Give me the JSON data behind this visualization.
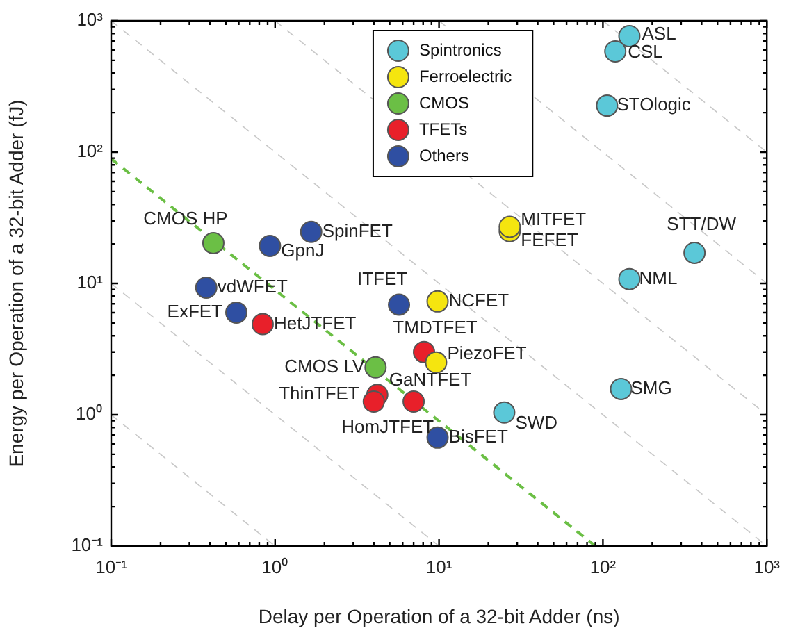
{
  "chart_data": {
    "type": "scatter",
    "xlabel": "Delay per Operation of a 32-bit Adder (ns)",
    "ylabel": "Energy per Operation of a 32-bit Adder (fJ)",
    "log": "xy",
    "grid": false,
    "legend": "top",
    "marker": "circle",
    "xlim": [
      0.1,
      1000
    ],
    "ylim": [
      0.1,
      1000
    ],
    "xticks": [
      {
        "value": 0.1,
        "label": "10⁻¹"
      },
      {
        "value": 1,
        "label": "10⁰"
      },
      {
        "value": 10,
        "label": "10¹"
      },
      {
        "value": 100,
        "label": "10²"
      },
      {
        "value": 1000,
        "label": "10³"
      }
    ],
    "yticks": [
      {
        "value": 0.1,
        "label": "10⁻¹"
      },
      {
        "value": 1,
        "label": "10⁰"
      },
      {
        "value": 10,
        "label": "10¹"
      },
      {
        "value": 100,
        "label": "10²"
      },
      {
        "value": 1000,
        "label": "10³"
      }
    ],
    "series": [
      {
        "name": "Spintronics",
        "color": "#5bc8d8",
        "x": [
          145,
          119,
          106,
          362,
          145,
          129,
          25
        ],
        "values": [
          765,
          585,
          226,
          17.1,
          10.8,
          1.57,
          1.04
        ]
      },
      {
        "name": "Ferroelectric",
        "color": "#f5e50f",
        "x": [
          27,
          27,
          9.8,
          9.6
        ],
        "values": [
          25,
          27,
          7.3,
          2.5
        ]
      },
      {
        "name": "CMOS",
        "color": "#6bbf45",
        "x": [
          0.42,
          4.1
        ],
        "values": [
          20.3,
          2.3
        ]
      },
      {
        "name": "TFETs",
        "color": "#e8202a",
        "x": [
          0.84,
          4.2,
          4,
          7,
          8.1
        ],
        "values": [
          4.9,
          1.42,
          1.26,
          1.26,
          3
        ]
      },
      {
        "name": "Others",
        "color": "#2f4fa2",
        "x": [
          0.38,
          0.58,
          0.93,
          1.66,
          5.7,
          9.8
        ],
        "values": [
          9.3,
          6,
          19.3,
          24.7,
          6.9,
          0.67
        ]
      },
      {
        "type": "line",
        "color": "#6bbf45",
        "line_style": "dashed",
        "marker": "none",
        "x": [
          0.1,
          90
        ],
        "values": [
          89,
          0.1
        ]
      },
      {
        "type": "line",
        "color": "#c8c8c8",
        "line_style": "dashed",
        "marker": "none",
        "x": [
          0.1,
          1
        ],
        "values": [
          1,
          0.1
        ]
      },
      {
        "type": "line",
        "color": "#c8c8c8",
        "line_style": "dashed",
        "marker": "none",
        "x": [
          0.1,
          10
        ],
        "values": [
          10,
          0.1
        ]
      },
      {
        "type": "line",
        "color": "#c8c8c8",
        "line_style": "dashed",
        "marker": "none",
        "x": [
          0.1,
          1000
        ],
        "values": [
          1000,
          0.1
        ]
      },
      {
        "type": "line",
        "color": "#c8c8c8",
        "line_style": "dashed",
        "marker": "none",
        "x": [
          1,
          1000
        ],
        "values": [
          1000,
          1
        ]
      },
      {
        "type": "line",
        "color": "#c8c8c8",
        "line_style": "dashed",
        "marker": "none",
        "x": [
          10,
          1000
        ],
        "values": [
          1000,
          10
        ]
      },
      {
        "type": "line",
        "color": "#c8c8c8",
        "line_style": "dashed",
        "marker": "none",
        "x": [
          100,
          1000
        ],
        "values": [
          1000,
          100
        ]
      }
    ],
    "annotations": [
      {
        "text": "ASL",
        "x": 145,
        "y": 765
      },
      {
        "text": "CSL",
        "x": 119,
        "y": 585
      },
      {
        "text": "STOlogic",
        "x": 106,
        "y": 226
      },
      {
        "text": "STT/DW",
        "x": 362,
        "y": 17.1
      },
      {
        "text": "NML",
        "x": 145,
        "y": 10.8
      },
      {
        "text": "SMG",
        "x": 129,
        "y": 1.57
      },
      {
        "text": "SWD",
        "x": 25,
        "y": 1.04
      },
      {
        "text": "FEFET",
        "x": 27,
        "y": 25
      },
      {
        "text": "MITFET",
        "x": 27,
        "y": 27
      },
      {
        "text": "NCFET",
        "x": 9.8,
        "y": 7.3
      },
      {
        "text": "PiezoFET",
        "x": 9.6,
        "y": 2.5
      },
      {
        "text": "CMOS HP",
        "x": 0.42,
        "y": 20.3
      },
      {
        "text": "CMOS LV",
        "x": 4.1,
        "y": 2.3
      },
      {
        "text": "HetJTFET",
        "x": 0.84,
        "y": 4.9
      },
      {
        "text": "ThinTFET",
        "x": 4.2,
        "y": 1.42
      },
      {
        "text": "HomJTFET",
        "x": 4,
        "y": 1.26
      },
      {
        "text": "GaNTFET",
        "x": 7,
        "y": 1.26
      },
      {
        "text": "TMDTFET",
        "x": 8.1,
        "y": 3
      },
      {
        "text": "vdWFET",
        "x": 0.38,
        "y": 9.3
      },
      {
        "text": "ExFET",
        "x": 0.58,
        "y": 6
      },
      {
        "text": "GpnJ",
        "x": 0.93,
        "y": 19.3
      },
      {
        "text": "SpinFET",
        "x": 1.66,
        "y": 24.7
      },
      {
        "text": "ITFET",
        "x": 5.7,
        "y": 6.9
      },
      {
        "text": "BisFET",
        "x": 9.8,
        "y": 0.67
      }
    ]
  }
}
